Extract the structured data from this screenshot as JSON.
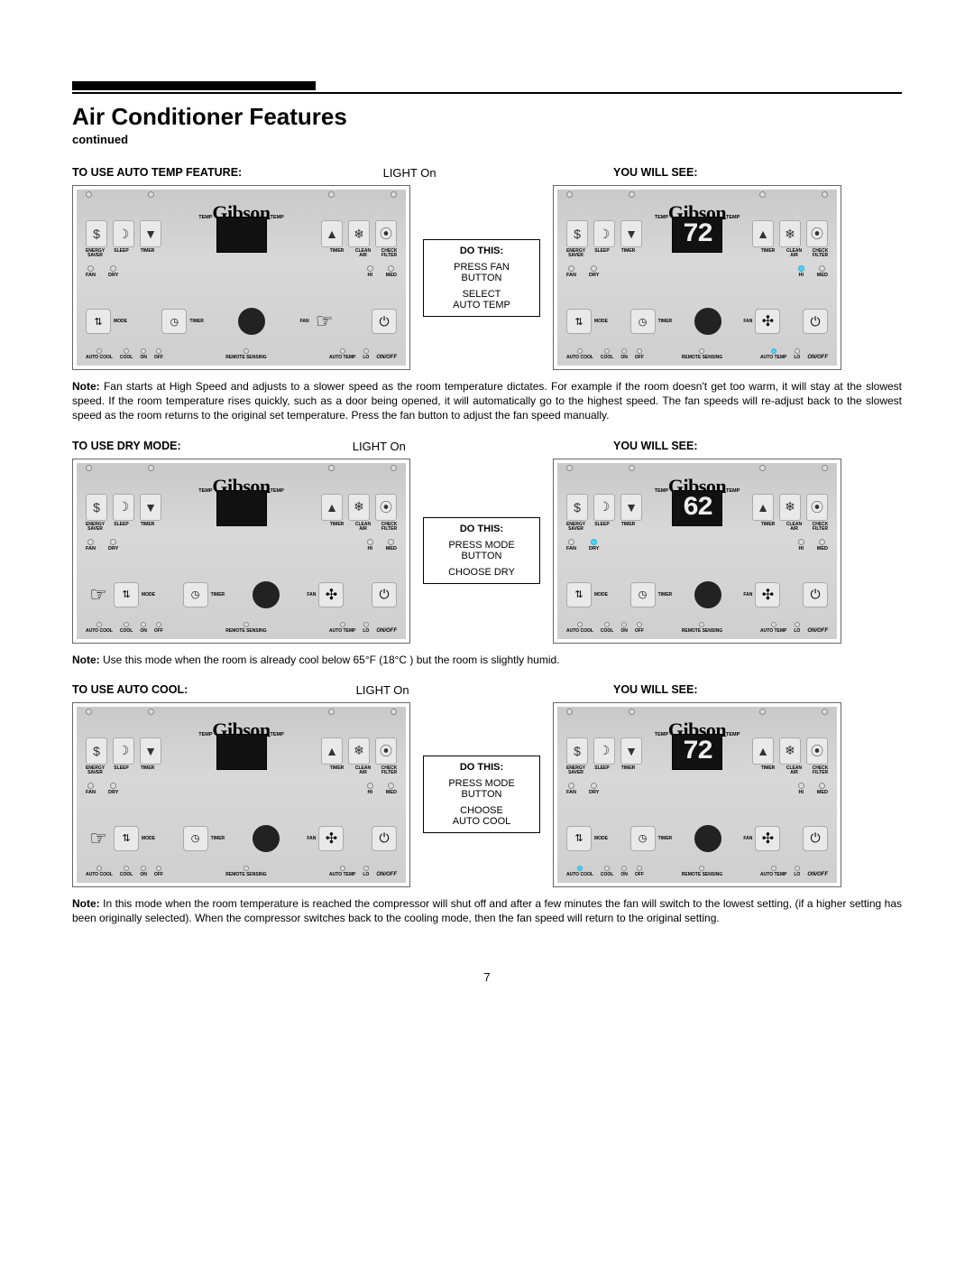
{
  "page": {
    "title": "Air Conditioner Features",
    "subtitle": "continued",
    "page_number": "7"
  },
  "colors": {
    "panel_bg_top": "#c9c9c9",
    "panel_bg_mid": "#d8d8d8",
    "panel_bg_bot": "#cfcfcf",
    "led_active": "#4dd2ff",
    "display_bg": "#111111",
    "display_seg": "#eeeeee",
    "border": "#000000"
  },
  "common": {
    "brand": "Gibson",
    "light_on": "LIGHT On",
    "you_will_see": "YOU WILL SEE:",
    "do_this": "DO THIS:",
    "on_off": "ON/OFF",
    "temp_label": "TEMP",
    "top_left_labels": [
      "ENERGY SAVER",
      "SLEEP",
      "TIMER"
    ],
    "top_right_labels": [
      "TIMER",
      "CLEAN AIR",
      "CHECK FILTER"
    ],
    "mid_left": [
      "FAN",
      "DRY"
    ],
    "mid_right": [
      "HI",
      "MED"
    ],
    "btn_mode": "MODE",
    "btn_timer": "TIMER",
    "btn_fan": "FAN",
    "foot_left": [
      "AUTO COOL",
      "COOL",
      "ON",
      "OFF"
    ],
    "foot_mid": [
      "REMOTE SENSING"
    ],
    "foot_right": [
      "AUTO TEMP",
      "LO"
    ],
    "icons": {
      "energy": "$",
      "sleep": "☽",
      "timer_dn": "▼",
      "timer_up": "▲",
      "clean": "❄",
      "check": "⦿",
      "updown": "⇅",
      "clock": "◷",
      "fan": "✣",
      "power": "⏻",
      "hand": "☞"
    }
  },
  "sections": [
    {
      "id": "auto-temp",
      "heading": "TO USE AUTO TEMP FEATURE:",
      "instructions": [
        "PRESS FAN",
        "BUTTON",
        "",
        "SELECT",
        "AUTO TEMP"
      ],
      "result_display": "72",
      "left_active": {
        "hand_on": "fan"
      },
      "right_active": {
        "hi": true,
        "auto_temp": true
      },
      "note_prefix": "Note:",
      "note": " Fan starts at High Speed and adjusts to a slower speed as the room temperature dictates. For example if the room doesn't get too warm, it will stay at the slowest speed. If the room temperature rises quickly, such as a door being opened, it will automatically go to the highest speed. The fan speeds will re-adjust back to the slowest speed as the room returns to the original set temperature. Press the fan button to adjust the fan speed manually."
    },
    {
      "id": "dry-mode",
      "heading": "TO USE DRY MODE:",
      "instructions": [
        "PRESS MODE",
        "BUTTON",
        "",
        "CHOOSE DRY"
      ],
      "result_display": "62",
      "left_active": {
        "hand_on": "mode"
      },
      "right_active": {
        "dry": true
      },
      "note_prefix": "Note:",
      "note": "  Use this mode when the room is already cool below 65°F (18°C ) but the room is slightly humid."
    },
    {
      "id": "auto-cool",
      "heading": "TO USE AUTO COOL:",
      "instructions": [
        "PRESS MODE",
        "BUTTON",
        "",
        "CHOOSE",
        "AUTO COOL"
      ],
      "result_display": "72",
      "left_active": {
        "hand_on": "mode"
      },
      "right_active": {
        "auto_cool": true
      },
      "note_prefix": "Note:",
      "note": " In this mode when the room temperature is reached the compressor will shut off and after a few minutes the fan will switch to the lowest setting, (if a higher setting has been originally selected). When the compressor switches back to the cooling mode, then the fan speed will return to the original setting."
    }
  ]
}
